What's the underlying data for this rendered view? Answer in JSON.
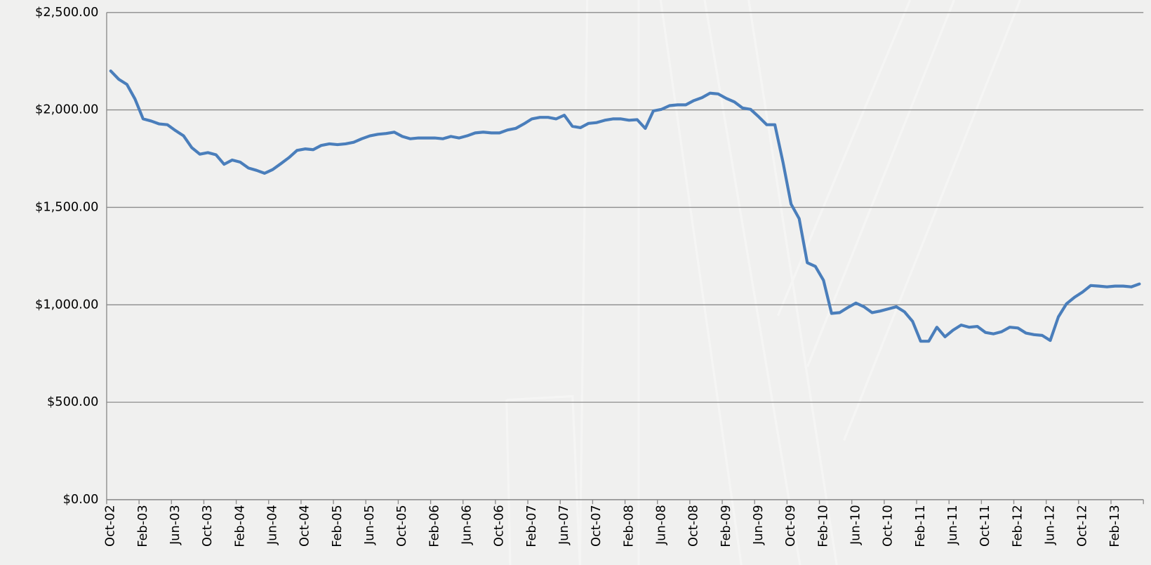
{
  "chart_data": {
    "type": "line",
    "categories": [
      "Oct-02",
      null,
      null,
      null,
      "Feb-03",
      null,
      null,
      null,
      "Jun-03",
      null,
      null,
      null,
      "Oct-03",
      null,
      null,
      null,
      "Feb-04",
      null,
      null,
      null,
      "Jun-04",
      null,
      null,
      null,
      "Oct-04",
      null,
      null,
      null,
      "Feb-05",
      null,
      null,
      null,
      "Jun-05",
      null,
      null,
      null,
      "Oct-05",
      null,
      null,
      null,
      "Feb-06",
      null,
      null,
      null,
      "Jun-06",
      null,
      null,
      null,
      "Oct-06",
      null,
      null,
      null,
      "Feb-07",
      null,
      null,
      null,
      "Jun-07",
      null,
      null,
      null,
      "Oct-07",
      null,
      null,
      null,
      "Feb-08",
      null,
      null,
      null,
      "Jun-08",
      null,
      null,
      null,
      "Oct-08",
      null,
      null,
      null,
      "Feb-09",
      null,
      null,
      null,
      "Jun-09",
      null,
      null,
      null,
      "Oct-09",
      null,
      null,
      null,
      "Feb-10",
      null,
      null,
      null,
      "Jun-10",
      null,
      null,
      null,
      "Oct-10",
      null,
      null,
      null,
      "Feb-11",
      null,
      null,
      null,
      "Jun-11",
      null,
      null,
      null,
      "Oct-11",
      null,
      null,
      null,
      "Feb-12",
      null,
      null,
      null,
      "Jun-12",
      null,
      null,
      null,
      "Oct-12",
      null,
      null,
      null,
      "Feb-13",
      null,
      null,
      null
    ],
    "series": [
      {
        "color": "#4a7ebb",
        "values": [
          2200,
          2157,
          2131,
          2056,
          1954,
          1943,
          1928,
          1924,
          1894,
          1867,
          1807,
          1773,
          1781,
          1770,
          1721,
          1743,
          1732,
          1702,
          1690,
          1675,
          1694,
          1724,
          1755,
          1792,
          1800,
          1796,
          1818,
          1826,
          1822,
          1826,
          1834,
          1852,
          1867,
          1875,
          1879,
          1886,
          1864,
          1852,
          1856,
          1856,
          1856,
          1852,
          1864,
          1856,
          1867,
          1882,
          1886,
          1882,
          1882,
          1897,
          1905,
          1928,
          1954,
          1962,
          1962,
          1954,
          1973,
          1916,
          1909,
          1931,
          1935,
          1947,
          1954,
          1954,
          1947,
          1950,
          1905,
          1995,
          2003,
          2022,
          2026,
          2026,
          2048,
          2063,
          2086,
          2082,
          2059,
          2041,
          2010,
          2003,
          1965,
          1924,
          1924,
          1732,
          1517,
          1442,
          1216,
          1197,
          1126,
          956,
          960,
          986,
          1009,
          990,
          960,
          968,
          979,
          990,
          964,
          915,
          813,
          813,
          885,
          836,
          870,
          896,
          885,
          889,
          858,
          851,
          862,
          885,
          881,
          855,
          847,
          843,
          817,
          938,
          1005,
          1039,
          1066,
          1099,
          1096,
          1092,
          1096,
          1096,
          1092,
          1107
        ]
      }
    ],
    "ylim": [
      0,
      2500
    ],
    "yticks": [
      {
        "value": 0,
        "label": "$0.00"
      },
      {
        "value": 500,
        "label": "$500.00"
      },
      {
        "value": 1000,
        "label": "$1,000.00"
      },
      {
        "value": 1500,
        "label": "$1,500.00"
      },
      {
        "value": 2000,
        "label": "$2,000.00"
      },
      {
        "value": 2500,
        "label": "$2,500.00"
      }
    ],
    "grid": true
  }
}
